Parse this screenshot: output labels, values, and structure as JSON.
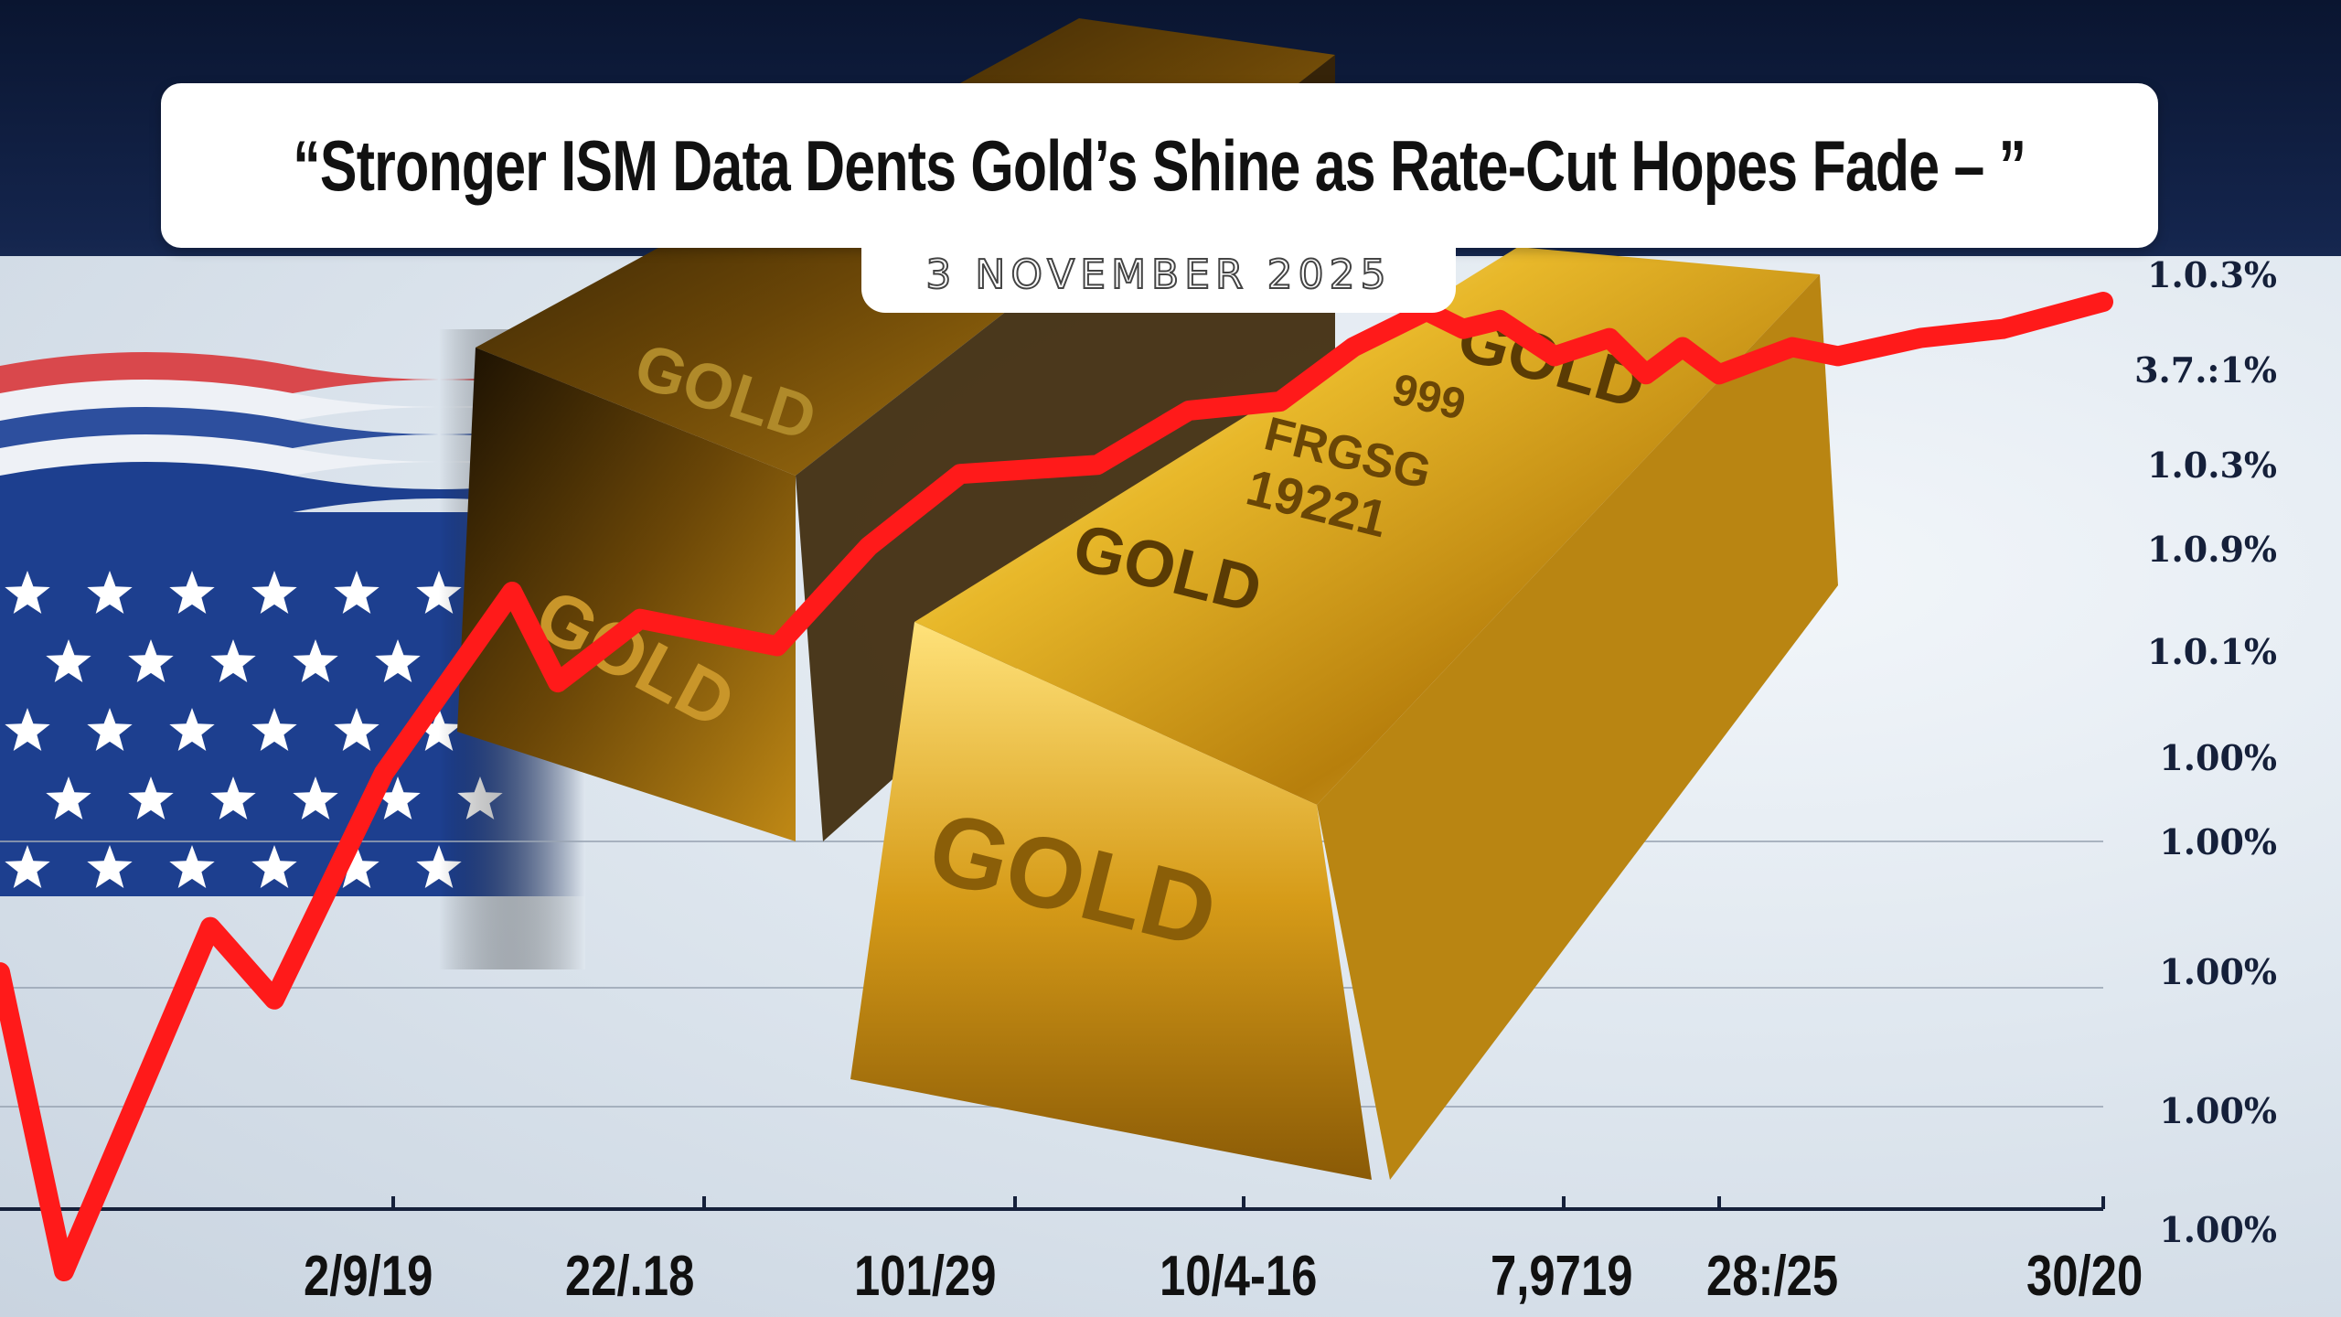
{
  "headline": "“Stronger ISM Data Dents Gold’s Shine as Rate-Cut Hopes Fade – ”",
  "date": "3 NOVEMBER 2025",
  "gold_bar_labels": {
    "back_bar_top": "GOLD",
    "back_bar_side": "GOLD",
    "front_bar_top_a": "GOLD",
    "front_bar_top_b": "GOLD",
    "front_bar_side": "GOLD",
    "stamp_line1": "999",
    "stamp_line2": "FRGSG",
    "stamp_line3": "19221"
  },
  "y_axis_labels": [
    "1.0.3%",
    "3.7.:1%",
    "1.0.3%",
    "1.0.9%",
    "1.0.1%",
    "1.00%",
    "1.00%",
    "1.00%",
    "1.00%",
    "1.00%"
  ],
  "x_axis_labels": [
    "2/9/19",
    "22/.18",
    "101/29",
    "10/4-16",
    "7,9719",
    "28:/25",
    "30/20"
  ],
  "colors": {
    "line": "#ff1a1a",
    "gold": "#d4a017",
    "flag_blue": "#1d3f8f",
    "flag_red": "#d9484c"
  },
  "trend_line": [
    0.33,
    0.0,
    0.38,
    0.3,
    0.55,
    0.75,
    0.65,
    0.72,
    0.69,
    0.8,
    0.88,
    0.89,
    0.95,
    0.96,
    1.02,
    1.06,
    1.04,
    1.05,
    1.01,
    1.03,
    0.99,
    1.02,
    0.99,
    1.02,
    1.01,
    1.03,
    1.04,
    1.07
  ]
}
